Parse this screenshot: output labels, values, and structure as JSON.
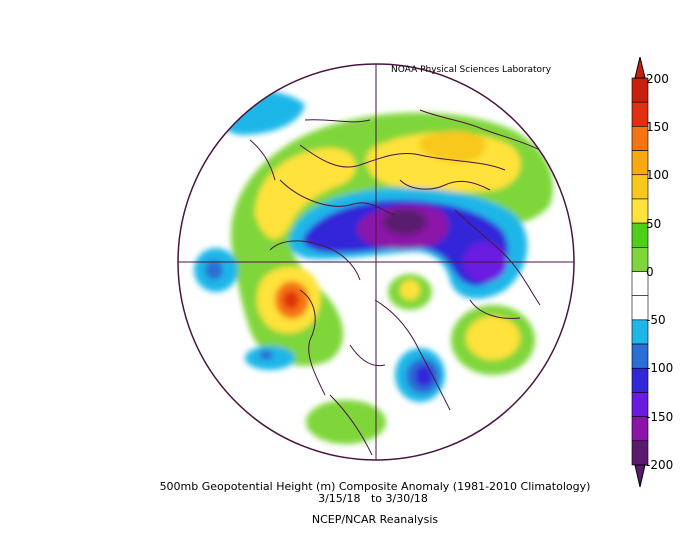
{
  "credit": "NOAA Physical Sciences Laboratory",
  "caption": {
    "line1": "500mb Geopotential Height (m) Composite Anomaly (1981-2010 Climatology)",
    "line2": "3/15/18   to 3/30/18",
    "line3": "NCEP/NCAR Reanalysis"
  },
  "colorbar": {
    "ticks": [
      "200",
      "150",
      "100",
      "50",
      "0",
      "-50",
      "-100",
      "-150",
      "-200"
    ],
    "colors": [
      "#5a1a6e",
      "#8c14a8",
      "#6a1de0",
      "#3227d8",
      "#2a6ed6",
      "#1fb7e8",
      "#ffffff",
      "#ffffff",
      "#7fd63a",
      "#4fcf1a",
      "#ffe23a",
      "#f8c81a",
      "#f8a812",
      "#f57514",
      "#e03010",
      "#c8200c"
    ]
  }
}
